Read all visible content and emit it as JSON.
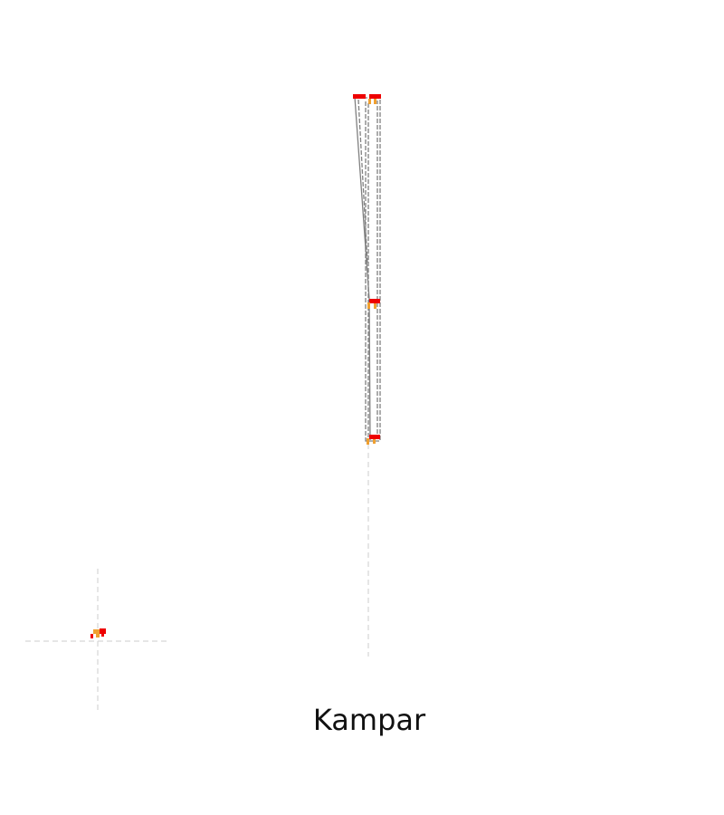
{
  "map": {
    "place_name": "Kampar",
    "colors": {
      "background": "#ffffff",
      "route": "#808080",
      "guide": "#d6d6d6",
      "marker_primary": "#ee0000",
      "marker_secondary": "#f0a030"
    }
  }
}
